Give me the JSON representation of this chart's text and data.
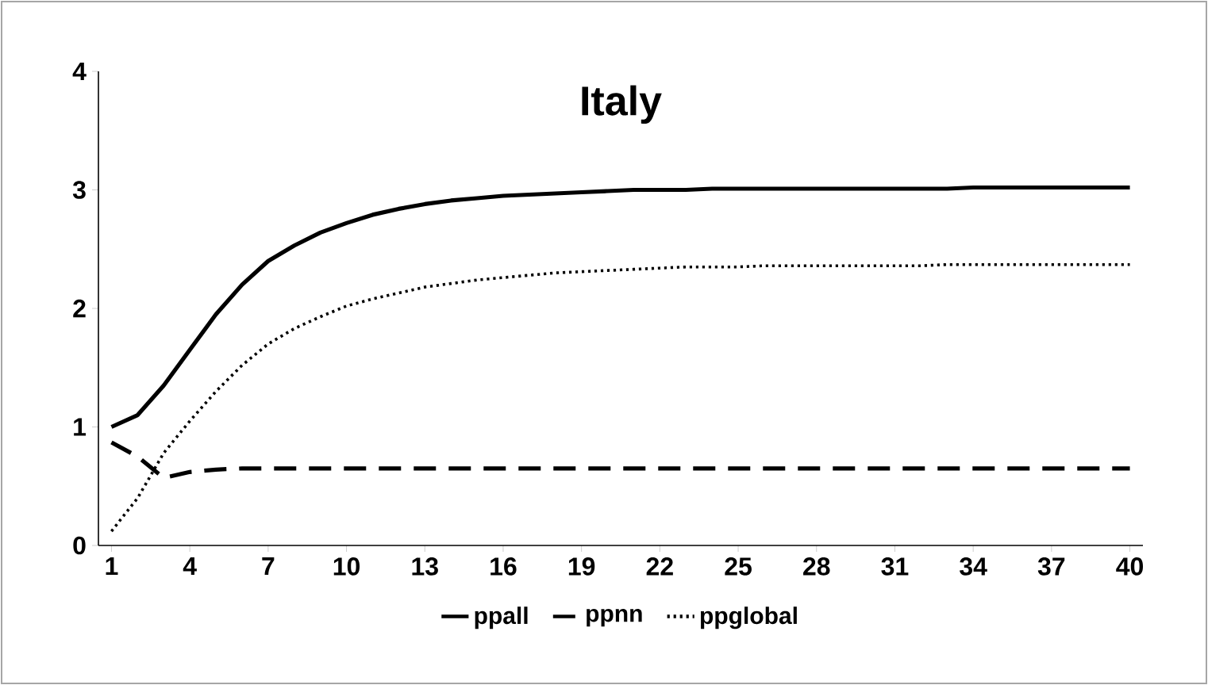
{
  "chart_data": {
    "type": "line",
    "title": "Italy",
    "categories": [
      "1",
      null,
      null,
      "4",
      null,
      null,
      "7",
      null,
      null,
      "10",
      null,
      null,
      "13",
      null,
      null,
      "16",
      null,
      null,
      "19",
      null,
      null,
      "22",
      null,
      null,
      "25",
      null,
      null,
      "28",
      null,
      null,
      "31",
      null,
      null,
      "34",
      null,
      null,
      "37",
      null,
      null,
      "40"
    ],
    "series": [
      {
        "name": "ppall",
        "color": "#000000",
        "line_style": "solid",
        "values": [
          1.0,
          1.1,
          1.35,
          1.65,
          1.95,
          2.2,
          2.4,
          2.53,
          2.64,
          2.72,
          2.79,
          2.84,
          2.88,
          2.91,
          2.93,
          2.95,
          2.96,
          2.97,
          2.98,
          2.99,
          3.0,
          3.0,
          3.0,
          3.01,
          3.01,
          3.01,
          3.01,
          3.01,
          3.01,
          3.01,
          3.01,
          3.01,
          3.01,
          3.02,
          3.02,
          3.02,
          3.02,
          3.02,
          3.02,
          3.02
        ]
      },
      {
        "name": "ppnn",
        "color": "#000000",
        "line_style": "dashed",
        "values": [
          0.87,
          0.75,
          0.57,
          0.62,
          0.64,
          0.65,
          0.65,
          0.65,
          0.65,
          0.65,
          0.65,
          0.65,
          0.65,
          0.65,
          0.65,
          0.65,
          0.65,
          0.65,
          0.65,
          0.65,
          0.65,
          0.65,
          0.65,
          0.65,
          0.65,
          0.65,
          0.65,
          0.65,
          0.65,
          0.65,
          0.65,
          0.65,
          0.65,
          0.65,
          0.65,
          0.65,
          0.65,
          0.65,
          0.65,
          0.65
        ]
      },
      {
        "name": "ppglobal",
        "color": "#000000",
        "line_style": "dotted",
        "values": [
          0.12,
          0.4,
          0.78,
          1.05,
          1.3,
          1.52,
          1.7,
          1.83,
          1.93,
          2.02,
          2.08,
          2.13,
          2.18,
          2.21,
          2.24,
          2.26,
          2.28,
          2.3,
          2.31,
          2.32,
          2.33,
          2.34,
          2.35,
          2.35,
          2.35,
          2.36,
          2.36,
          2.36,
          2.36,
          2.36,
          2.36,
          2.36,
          2.37,
          2.37,
          2.37,
          2.37,
          2.37,
          2.37,
          2.37,
          2.37
        ]
      }
    ],
    "ylim": [
      0,
      4
    ],
    "yticks": [
      0,
      1,
      2,
      3,
      4
    ],
    "grid": false,
    "legend": "bottom",
    "marker": "none"
  }
}
